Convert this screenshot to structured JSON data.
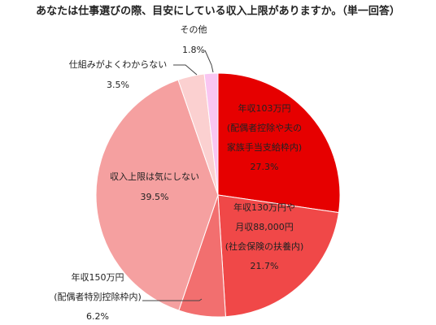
{
  "chart_data": {
    "type": "pie",
    "title": "あなたは仕事選びの際、目安にしている収入上限がありますか。（単一回答）",
    "categories": [
      [
        "年収103万円",
        "(配偶者控除や夫の",
        "家族手当支給枠内)"
      ],
      [
        "年収130万円や",
        "月収88,000円",
        "(社会保険の扶養内)"
      ],
      [
        "年収150万円",
        "(配偶者特別控除枠内)"
      ],
      [
        "収入上限は気にしない"
      ],
      [
        "仕組みがよくわからない"
      ],
      [
        "その他"
      ]
    ],
    "values": [
      27.3,
      21.7,
      6.2,
      39.5,
      3.5,
      1.8
    ],
    "value_labels": [
      "27.3%",
      "21.7%",
      "6.2%",
      "39.5%",
      "3.5%",
      "1.8%"
    ],
    "colors": [
      "#e60000",
      "#f04848",
      "#f26f6f",
      "#f5a0a0",
      "#fbd0d0",
      "#f9c6f2"
    ]
  }
}
